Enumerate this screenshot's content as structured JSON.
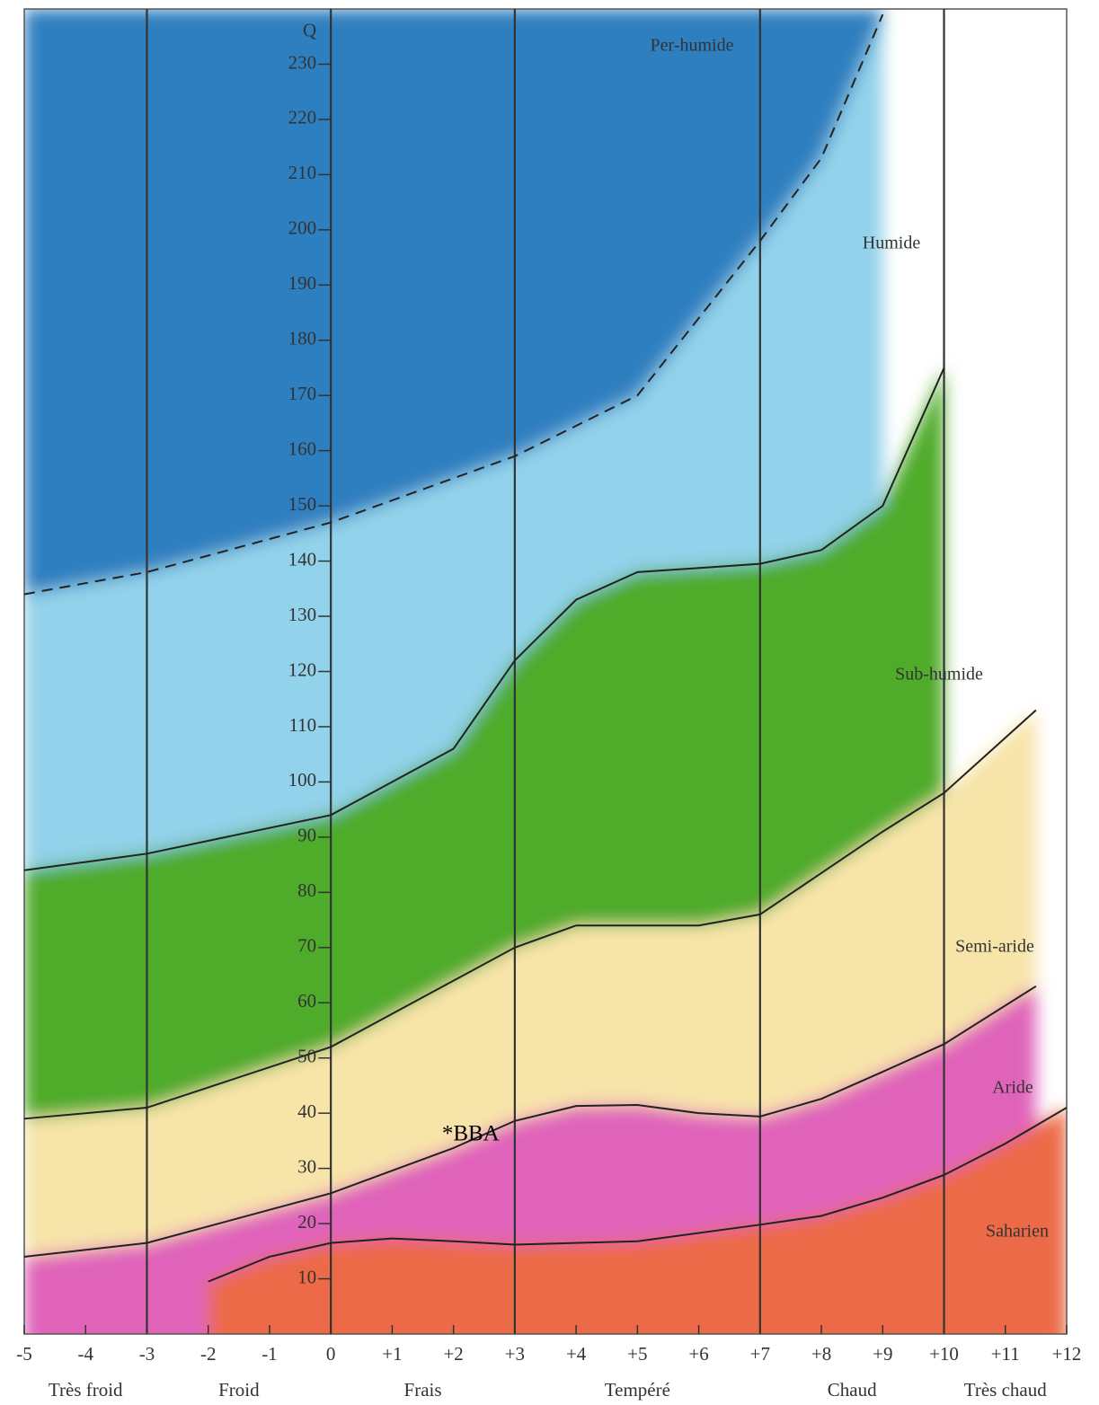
{
  "chart_data": {
    "type": "climagram",
    "y_label": "Q",
    "xlim": [
      -5,
      12
    ],
    "ylim": [
      0,
      240
    ],
    "xticks": [
      -5,
      -4,
      -3,
      -2,
      -1,
      0,
      {
        "value": 1,
        "label": "+1"
      },
      {
        "value": 2,
        "label": "+2"
      },
      {
        "value": 3,
        "label": "+3"
      },
      {
        "value": 4,
        "label": "+4"
      },
      {
        "value": 5,
        "label": "+5"
      },
      {
        "value": 6,
        "label": "+6"
      },
      {
        "value": 7,
        "label": "+7"
      },
      {
        "value": 8,
        "label": "+8"
      },
      {
        "value": 9,
        "label": "+9"
      },
      {
        "value": 10,
        "label": "+10"
      },
      {
        "value": 11,
        "label": "+11"
      },
      {
        "value": 12,
        "label": "+12"
      }
    ],
    "yticks": [
      10,
      20,
      30,
      40,
      50,
      60,
      70,
      80,
      90,
      100,
      110,
      120,
      130,
      140,
      150,
      160,
      170,
      180,
      190,
      200,
      210,
      220,
      230
    ],
    "vlines": [
      -3,
      0,
      3,
      7,
      10
    ],
    "thermal_categories": [
      "Très froid",
      "Froid",
      "Frais",
      "Tempéré",
      "Chaud",
      "Très chaud"
    ],
    "zones": [
      {
        "name": "Per-humide",
        "color": "#2f7fc0"
      },
      {
        "name": "Humide",
        "color": "#92d2ea"
      },
      {
        "name": "Sub-humide",
        "color": "#4fab2c"
      },
      {
        "name": "Semi-aride",
        "color": "#f7e4a9"
      },
      {
        "name": "Aride",
        "color": "#e063ba"
      },
      {
        "name": "Saharien",
        "color": "#ec6b47"
      }
    ],
    "boundaries": [
      {
        "dashed": true,
        "x": [
          -5,
          -3,
          0,
          3,
          5,
          7,
          8,
          9
        ],
        "values": [
          134,
          138,
          147,
          159,
          170,
          198,
          213,
          239
        ]
      },
      {
        "dashed": false,
        "x": [
          -5,
          -3,
          0,
          2,
          3,
          4,
          5,
          7,
          8,
          9,
          10
        ],
        "values": [
          84,
          87,
          94,
          106,
          122,
          133,
          138,
          139.5,
          142,
          150,
          175
        ]
      },
      {
        "dashed": false,
        "x": [
          -5,
          -3,
          0,
          2,
          3,
          4,
          5,
          6,
          7,
          8,
          9,
          10,
          11.5
        ],
        "values": [
          39,
          41,
          52,
          64,
          70,
          74,
          74,
          74,
          76,
          83.5,
          91,
          98,
          113
        ]
      },
      {
        "dashed": false,
        "x": [
          -5,
          -3,
          0,
          2,
          3,
          4,
          5,
          6,
          7,
          8,
          9,
          10,
          11.5
        ],
        "values": [
          14,
          16.5,
          25.5,
          33.7,
          38.6,
          41.3,
          41.5,
          40,
          39.4,
          42.6,
          47.5,
          52.5,
          63
        ]
      },
      {
        "dashed": false,
        "x": [
          -2,
          -1,
          0,
          1,
          2,
          3,
          5,
          7,
          8,
          9,
          10,
          11,
          12
        ],
        "values": [
          9.5,
          14,
          16.5,
          17.3,
          16.8,
          16.2,
          16.8,
          19.8,
          21.4,
          24.7,
          28.8,
          34.5,
          41
        ]
      }
    ],
    "points": [
      {
        "label": "*BBA",
        "x": 1.9,
        "y": 36
      }
    ]
  }
}
